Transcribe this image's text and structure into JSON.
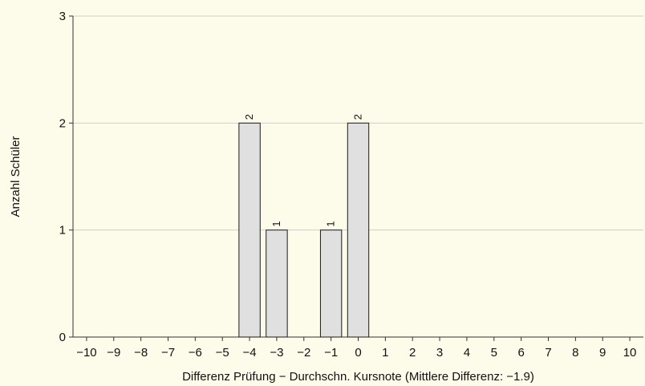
{
  "chart_data": {
    "type": "bar",
    "x": [
      -10,
      -9,
      -8,
      -7,
      -6,
      -5,
      -4,
      -3,
      -2,
      -1,
      0,
      1,
      2,
      3,
      4,
      5,
      6,
      7,
      8,
      9,
      10
    ],
    "categories": [
      "−10",
      "−9",
      "−8",
      "−7",
      "−6",
      "−5",
      "−4",
      "−3",
      "−2",
      "−1",
      "0",
      "1",
      "2",
      "3",
      "4",
      "5",
      "6",
      "7",
      "8",
      "9",
      "10"
    ],
    "values": [
      0,
      0,
      0,
      0,
      0,
      0,
      2,
      1,
      0,
      1,
      2,
      0,
      0,
      0,
      0,
      0,
      0,
      0,
      0,
      0,
      0
    ],
    "data_labels": [
      "",
      "",
      "",
      "",
      "",
      "",
      "2",
      "1",
      "",
      "1",
      "2",
      "",
      "",
      "",
      "",
      "",
      "",
      "",
      "",
      "",
      ""
    ],
    "xlabel": "Differenz Prüfung − Durchschn. Kursnote (Mittlere Differenz: −1.9)",
    "ylabel": "Anzahl Schüler",
    "ylim": [
      0,
      3
    ],
    "yticks": [
      0,
      1,
      2,
      3
    ],
    "grid": true,
    "colors": {
      "background": "#fdfbe9",
      "bar_fill": "#e0e0e0",
      "bar_stroke": "#1a1a1a",
      "grid": "#cfcfcf",
      "axis": "#333333"
    }
  }
}
